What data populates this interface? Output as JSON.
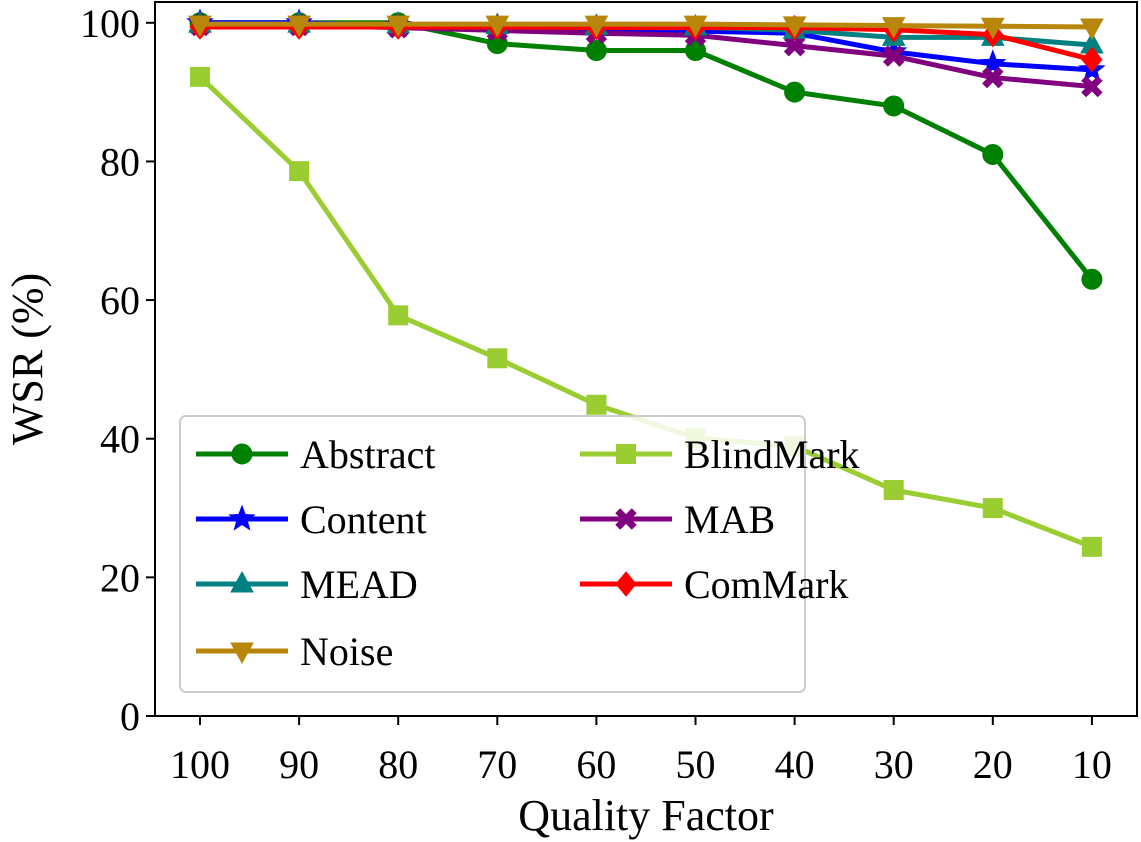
{
  "chart_data": {
    "type": "line",
    "title": "",
    "xlabel": "Quality Factor",
    "ylabel": "WSR (%)",
    "categories": [
      "100",
      "90",
      "80",
      "70",
      "60",
      "50",
      "40",
      "30",
      "20",
      "10"
    ],
    "ylim": [
      0,
      103
    ],
    "yticks": [
      "0",
      "20",
      "40",
      "60",
      "80",
      "100"
    ],
    "grid": false,
    "legend_position": "lower-left",
    "series": [
      {
        "name": "Abstract",
        "color": "#008000",
        "marker": "circle",
        "values": [
          100,
          100,
          100,
          97,
          96,
          96,
          90,
          88,
          81,
          63
        ]
      },
      {
        "name": "BlindMark",
        "color": "#9acd32",
        "marker": "square",
        "values": [
          92.2,
          78.6,
          57.8,
          51.6,
          44.9,
          40.1,
          38.9,
          32.6,
          30.0,
          24.4
        ]
      },
      {
        "name": "Content",
        "color": "#0000ff",
        "marker": "star",
        "values": [
          100,
          100,
          99.6,
          99.3,
          99.0,
          98.8,
          98.5,
          95.8,
          94.1,
          93.2
        ]
      },
      {
        "name": "MAB",
        "color": "#800080",
        "marker": "x",
        "values": [
          99.6,
          99.6,
          99.3,
          98.9,
          98.5,
          98.2,
          96.7,
          95.2,
          92.1,
          90.8
        ]
      },
      {
        "name": "MEAD",
        "color": "#008080",
        "marker": "triangle-up",
        "values": [
          99.8,
          99.8,
          99.7,
          99.6,
          99.5,
          99.4,
          98.9,
          97.9,
          97.9,
          96.8
        ]
      },
      {
        "name": "ComMark",
        "color": "#ff0000",
        "marker": "diamond",
        "values": [
          99.4,
          99.4,
          99.4,
          99.4,
          99.3,
          99.3,
          99.3,
          99.0,
          98.3,
          94.7
        ]
      },
      {
        "name": "Noise",
        "color": "#b8860b",
        "marker": "triangle-down",
        "values": [
          99.8,
          99.8,
          99.8,
          99.8,
          99.8,
          99.8,
          99.7,
          99.6,
          99.5,
          99.4
        ]
      }
    ],
    "legend_order": [
      "Abstract",
      "BlindMark",
      "Content",
      "MAB",
      "MEAD",
      "ComMark",
      "Noise"
    ]
  }
}
